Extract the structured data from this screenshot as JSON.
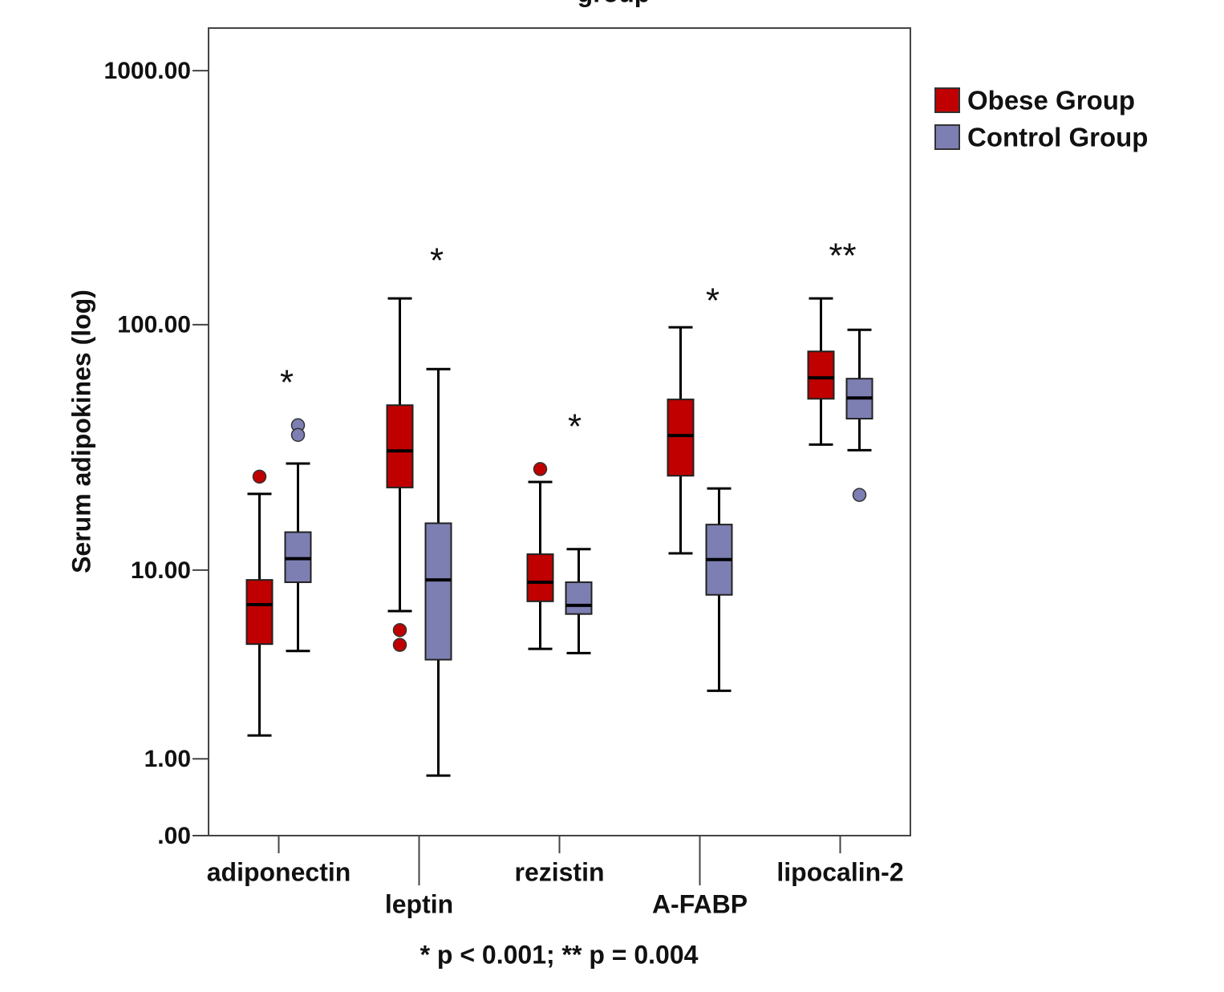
{
  "chart_data": {
    "type": "boxplot",
    "title": "group",
    "y_label": "Serum adipokines (log)",
    "yscale": "log1p",
    "ylim": [
      0,
      1470
    ],
    "yticks": [
      {
        "value": 1000,
        "label": "1000.00"
      },
      {
        "value": 100,
        "label": "100.00"
      },
      {
        "value": 10,
        "label": "10.00"
      },
      {
        "value": 1,
        "label": "1.00"
      },
      {
        "value": 0,
        "label": ".00"
      }
    ],
    "categories": [
      "adiponectin",
      "leptin",
      "rezistin",
      "A-FABP",
      "lipocalin-2"
    ],
    "series": [
      {
        "name": "Obese Group",
        "color": "#c00000",
        "values": [
          {
            "min": 1.47,
            "q1": 4.64,
            "median": 7.05,
            "q3": 9.07,
            "max": 20.9,
            "outliers": [
              24.6
            ]
          },
          {
            "min": 6.6,
            "q1": 22.2,
            "median": 31.3,
            "q3": 47.8,
            "max": 127,
            "outliers": [
              5.4,
              4.6
            ]
          },
          {
            "min": 4.4,
            "q1": 7.3,
            "median": 8.86,
            "q3": 11.7,
            "max": 23.4,
            "outliers": [
              26.4
            ]
          },
          {
            "min": 11.8,
            "q1": 24.8,
            "median": 36.1,
            "q3": 50.4,
            "max": 97.6,
            "outliers": []
          },
          {
            "min": 33.2,
            "q1": 50.7,
            "median": 61.5,
            "q3": 78.3,
            "max": 127,
            "outliers": []
          }
        ]
      },
      {
        "name": "Control Group",
        "color": "#7d7fb3",
        "values": [
          {
            "min": 4.3,
            "q1": 8.86,
            "median": 11.2,
            "q3": 14.5,
            "max": 27.8,
            "outliers": [
              39.7,
              36.3
            ]
          },
          {
            "min": 0.72,
            "q1": 3.9,
            "median": 9.07,
            "q3": 15.8,
            "max": 66.6,
            "outliers": []
          },
          {
            "min": 4.2,
            "q1": 6.4,
            "median": 7.0,
            "q3": 8.86,
            "max": 12.3,
            "outliers": []
          },
          {
            "min": 2.7,
            "q1": 7.8,
            "median": 11.1,
            "q3": 15.6,
            "max": 22.0,
            "outliers": []
          },
          {
            "min": 31.5,
            "q1": 42.2,
            "median": 51.1,
            "q3": 61,
            "max": 95.4,
            "outliers": [
              20.7
            ]
          }
        ]
      }
    ],
    "annotations": [
      "*",
      "*",
      "*",
      "*",
      "**"
    ],
    "footnote": "* p < 0.001;  ** p = 0.004"
  }
}
